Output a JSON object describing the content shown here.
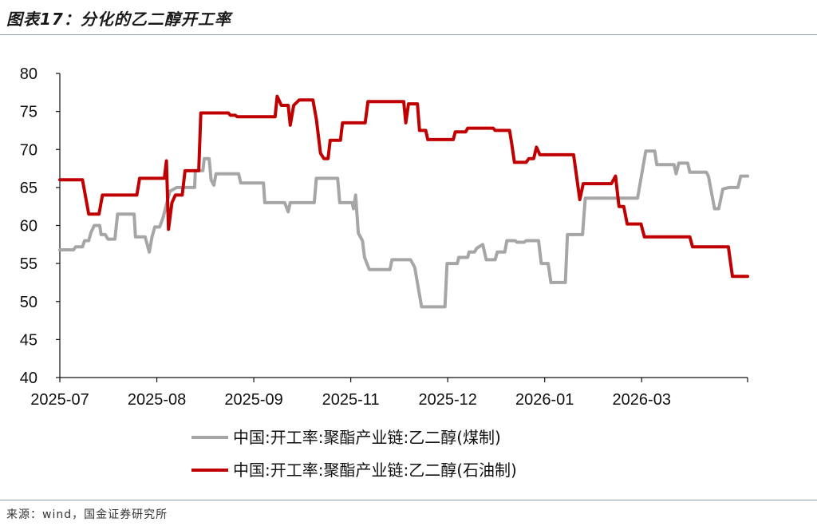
{
  "title": "图表17：分化的乙二醇开工率",
  "source": "来源：wind，国金证券研究所",
  "colors": {
    "coal": "#a6a6a6",
    "oil": "#c00000",
    "axis": "#111111"
  },
  "chart_data": {
    "type": "line",
    "ylim": [
      40,
      80
    ],
    "yticks": [
      40,
      45,
      50,
      55,
      60,
      65,
      70,
      75,
      80
    ],
    "xlim": [
      0,
      100
    ],
    "xticks": [
      {
        "label": "2025-07",
        "pos": 0
      },
      {
        "label": "2025-08",
        "pos": 14.1
      },
      {
        "label": "2025-09",
        "pos": 28.2
      },
      {
        "label": "2025-11",
        "pos": 42.3
      },
      {
        "label": "2025-12",
        "pos": 56.4
      },
      {
        "label": "2026-01",
        "pos": 70.5
      },
      {
        "label": "2026-03",
        "pos": 84.6
      }
    ],
    "legend": "bottom",
    "series": [
      {
        "name": "中国:开工率:聚酯产业链:乙二醇(煤制)",
        "color_key": "coal",
        "points": [
          [
            0,
            56.8
          ],
          [
            2,
            56.8
          ],
          [
            2.3,
            57.2
          ],
          [
            3.3,
            57.2
          ],
          [
            3.6,
            58
          ],
          [
            4.2,
            58
          ],
          [
            4.5,
            59
          ],
          [
            5,
            60
          ],
          [
            5.8,
            60
          ],
          [
            6,
            58.8
          ],
          [
            6.6,
            58.8
          ],
          [
            7,
            58.2
          ],
          [
            8,
            58.2
          ],
          [
            8.4,
            61.5
          ],
          [
            10.8,
            61.5
          ],
          [
            11,
            58.5
          ],
          [
            12.4,
            58.5
          ],
          [
            13,
            56.5
          ],
          [
            13.4,
            58.5
          ],
          [
            13.8,
            59.8
          ],
          [
            14.5,
            59.8
          ],
          [
            15,
            61
          ],
          [
            16,
            64.5
          ],
          [
            17,
            65
          ],
          [
            19.6,
            65
          ],
          [
            19.7,
            67.2
          ],
          [
            20.8,
            67.2
          ],
          [
            21,
            68.8
          ],
          [
            21.7,
            68.8
          ],
          [
            22,
            66
          ],
          [
            22.4,
            65.3
          ],
          [
            22.7,
            66.8
          ],
          [
            26,
            66.8
          ],
          [
            26.3,
            65.6
          ],
          [
            29.6,
            65.6
          ],
          [
            29.8,
            63
          ],
          [
            32.7,
            63
          ],
          [
            33.2,
            61.8
          ],
          [
            33.5,
            63
          ],
          [
            37,
            63
          ],
          [
            37.3,
            66.2
          ],
          [
            40.4,
            66.2
          ],
          [
            40.7,
            63
          ],
          [
            42.5,
            63
          ],
          [
            42.7,
            62.2
          ],
          [
            43,
            64
          ],
          [
            43.4,
            59
          ],
          [
            44,
            58
          ],
          [
            44.3,
            55.8
          ],
          [
            45,
            54.2
          ],
          [
            48,
            54.2
          ],
          [
            48.3,
            55.5
          ],
          [
            51,
            55.5
          ],
          [
            51.6,
            54.5
          ],
          [
            52.6,
            49.3
          ],
          [
            56,
            49.3
          ],
          [
            56.3,
            55
          ],
          [
            57.8,
            55
          ],
          [
            58,
            55.8
          ],
          [
            59.3,
            55.8
          ],
          [
            59.5,
            56.5
          ],
          [
            60.3,
            56.5
          ],
          [
            60.6,
            57
          ],
          [
            61.5,
            57.5
          ],
          [
            62,
            55.5
          ],
          [
            63.3,
            55.5
          ],
          [
            63.6,
            56.5
          ],
          [
            64.7,
            56.5
          ],
          [
            65,
            58
          ],
          [
            66.2,
            58
          ],
          [
            66.5,
            57.8
          ],
          [
            67.5,
            57.8
          ],
          [
            67.8,
            58
          ],
          [
            69.6,
            58
          ],
          [
            70,
            55
          ],
          [
            71,
            55
          ],
          [
            71.4,
            52.5
          ],
          [
            73.5,
            52.5
          ],
          [
            73.8,
            58.8
          ],
          [
            76,
            58.8
          ],
          [
            76.4,
            63.6
          ],
          [
            84,
            63.6
          ],
          [
            85.2,
            69.8
          ],
          [
            86.5,
            69.8
          ],
          [
            86.8,
            68
          ],
          [
            89.3,
            68
          ],
          [
            89.6,
            66.8
          ],
          [
            90,
            68.2
          ],
          [
            91.3,
            68.2
          ],
          [
            91.6,
            67
          ],
          [
            94,
            67
          ],
          [
            94.3,
            66.5
          ],
          [
            95.2,
            62.2
          ],
          [
            95.8,
            62.2
          ],
          [
            96.4,
            64.8
          ],
          [
            97.3,
            65
          ],
          [
            98.6,
            65
          ],
          [
            99,
            66.5
          ],
          [
            100,
            66.5
          ]
        ]
      },
      {
        "name": "中国:开工率:聚酯产业链:乙二醇(石油制)",
        "color_key": "oil",
        "points": [
          [
            0,
            66
          ],
          [
            3.3,
            66
          ],
          [
            4.2,
            61.5
          ],
          [
            5.7,
            61.5
          ],
          [
            6.2,
            64
          ],
          [
            11.2,
            64
          ],
          [
            11.6,
            66.2
          ],
          [
            15.2,
            66.2
          ],
          [
            15.5,
            68.5
          ],
          [
            15.8,
            59.5
          ],
          [
            16.3,
            63
          ],
          [
            16.8,
            64
          ],
          [
            17.8,
            64
          ],
          [
            18.2,
            67.2
          ],
          [
            20.2,
            67.2
          ],
          [
            20.5,
            74.8
          ],
          [
            24.5,
            74.8
          ],
          [
            24.8,
            74.5
          ],
          [
            25.5,
            74.5
          ],
          [
            25.8,
            74.3
          ],
          [
            31.3,
            74.3
          ],
          [
            31.6,
            77
          ],
          [
            32.2,
            75.8
          ],
          [
            33.2,
            75.8
          ],
          [
            33.5,
            73.2
          ],
          [
            34,
            75.8
          ],
          [
            34.8,
            76.5
          ],
          [
            36.8,
            76.5
          ],
          [
            37,
            75.5
          ],
          [
            37.3,
            74
          ],
          [
            37.9,
            69.5
          ],
          [
            38.4,
            68.8
          ],
          [
            39,
            68.8
          ],
          [
            39.3,
            71.2
          ],
          [
            40.8,
            71.2
          ],
          [
            41.1,
            73.5
          ],
          [
            44.4,
            73.5
          ],
          [
            44.8,
            76.3
          ],
          [
            50,
            76.3
          ],
          [
            50.3,
            73.5
          ],
          [
            50.7,
            76
          ],
          [
            52,
            76
          ],
          [
            52.3,
            72.5
          ],
          [
            53.2,
            72.5
          ],
          [
            53.5,
            71.3
          ],
          [
            57.2,
            71.3
          ],
          [
            57.5,
            72.3
          ],
          [
            59,
            72.3
          ],
          [
            59.3,
            72.8
          ],
          [
            63,
            72.8
          ],
          [
            63.3,
            72.5
          ],
          [
            65.4,
            72.5
          ],
          [
            65.7,
            70.8
          ],
          [
            66.1,
            68.3
          ],
          [
            67.8,
            68.3
          ],
          [
            68.2,
            68.8
          ],
          [
            68.9,
            68.8
          ],
          [
            69.3,
            70.3
          ],
          [
            69.8,
            69.3
          ],
          [
            74.7,
            69.3
          ],
          [
            75.6,
            63.4
          ],
          [
            76.1,
            65.5
          ],
          [
            80.2,
            65.5
          ],
          [
            80.8,
            66.5
          ],
          [
            81.3,
            62.5
          ],
          [
            82,
            62.5
          ],
          [
            82.5,
            60.2
          ],
          [
            84.5,
            60.2
          ],
          [
            85,
            58.5
          ],
          [
            91.6,
            58.5
          ],
          [
            92,
            57.2
          ],
          [
            97.2,
            57.2
          ],
          [
            97.8,
            53.3
          ],
          [
            100,
            53.3
          ]
        ]
      }
    ]
  }
}
